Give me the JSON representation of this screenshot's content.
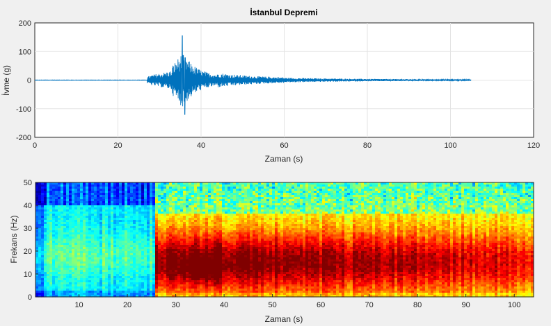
{
  "chart_data": [
    {
      "type": "line",
      "title": "İstanbul Depremi",
      "xlabel": "Zaman (s)",
      "ylabel": "İvme (g)",
      "xlim": [
        0,
        120
      ],
      "ylim": [
        -200,
        200
      ],
      "xticks": [
        "0",
        "20",
        "40",
        "60",
        "80",
        "100",
        "120"
      ],
      "yticks": [
        "200",
        "100",
        "0",
        "-100",
        "-200"
      ],
      "grid": true,
      "line_color": "#0072bd",
      "signal": {
        "start_s": 27,
        "end_s": 105,
        "max": 155,
        "min": -120,
        "peak_time_s": 35.5,
        "pre_event_level": 0
      }
    },
    {
      "type": "heatmap",
      "title": "",
      "xlabel": "Zaman (s)",
      "ylabel": "Frekans (Hz)",
      "xlim": [
        1,
        104
      ],
      "ylim": [
        0,
        50
      ],
      "xticks": [
        "10",
        "20",
        "30",
        "40",
        "50",
        "60",
        "70",
        "80",
        "90",
        "100"
      ],
      "yticks": [
        "50",
        "40",
        "30",
        "20",
        "10",
        "0"
      ],
      "colormap": "jet",
      "onset_s": 26,
      "max_energy": {
        "time_s": 36,
        "freq_hz": 12
      }
    }
  ]
}
